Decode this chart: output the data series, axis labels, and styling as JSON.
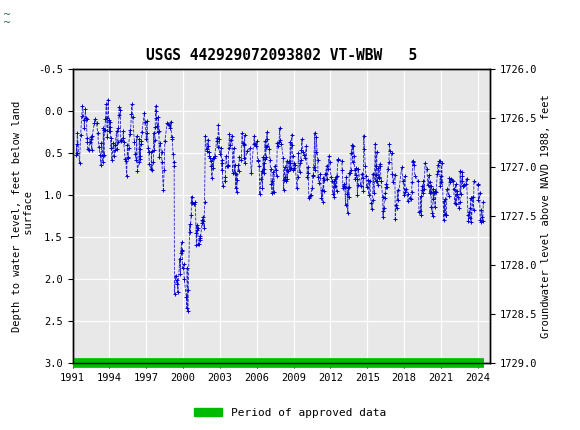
{
  "title": "USGS 442929072093802 VT-WBW   5",
  "ylabel_left": "Depth to water level, feet below land\n surface",
  "ylabel_right": "Groundwater level above NAVD 1988, feet",
  "ylim_left": [
    -0.5,
    3.0
  ],
  "ylim_right_top": 1729.0,
  "ylim_right_bottom": 1726.0,
  "yticks_left": [
    -0.5,
    0.0,
    0.5,
    1.0,
    1.5,
    2.0,
    2.5,
    3.0
  ],
  "ytick_labels_left": [
    "-0.5",
    "0.0",
    "0.5",
    "1.0",
    "1.5",
    "2.0",
    "2.5",
    "3.0"
  ],
  "yticks_right": [
    1729.0,
    1728.5,
    1728.0,
    1727.5,
    1727.0,
    1726.5,
    1726.0
  ],
  "ytick_labels_right": [
    "1729.0",
    "1728.5",
    "1728.0",
    "1727.5",
    "1727.0",
    "1726.5",
    "1726.0"
  ],
  "xlim": [
    1991,
    2025
  ],
  "xticks": [
    1991,
    1994,
    1997,
    2000,
    2003,
    2006,
    2009,
    2012,
    2015,
    2018,
    2021,
    2024
  ],
  "header_color": "#1a6b3c",
  "data_color": "#0000cc",
  "approved_color": "#00bb00",
  "legend_label": "Period of approved data",
  "plot_background": "#e8e8e8",
  "grid_color": "#ffffff",
  "spine_color": "#000000"
}
